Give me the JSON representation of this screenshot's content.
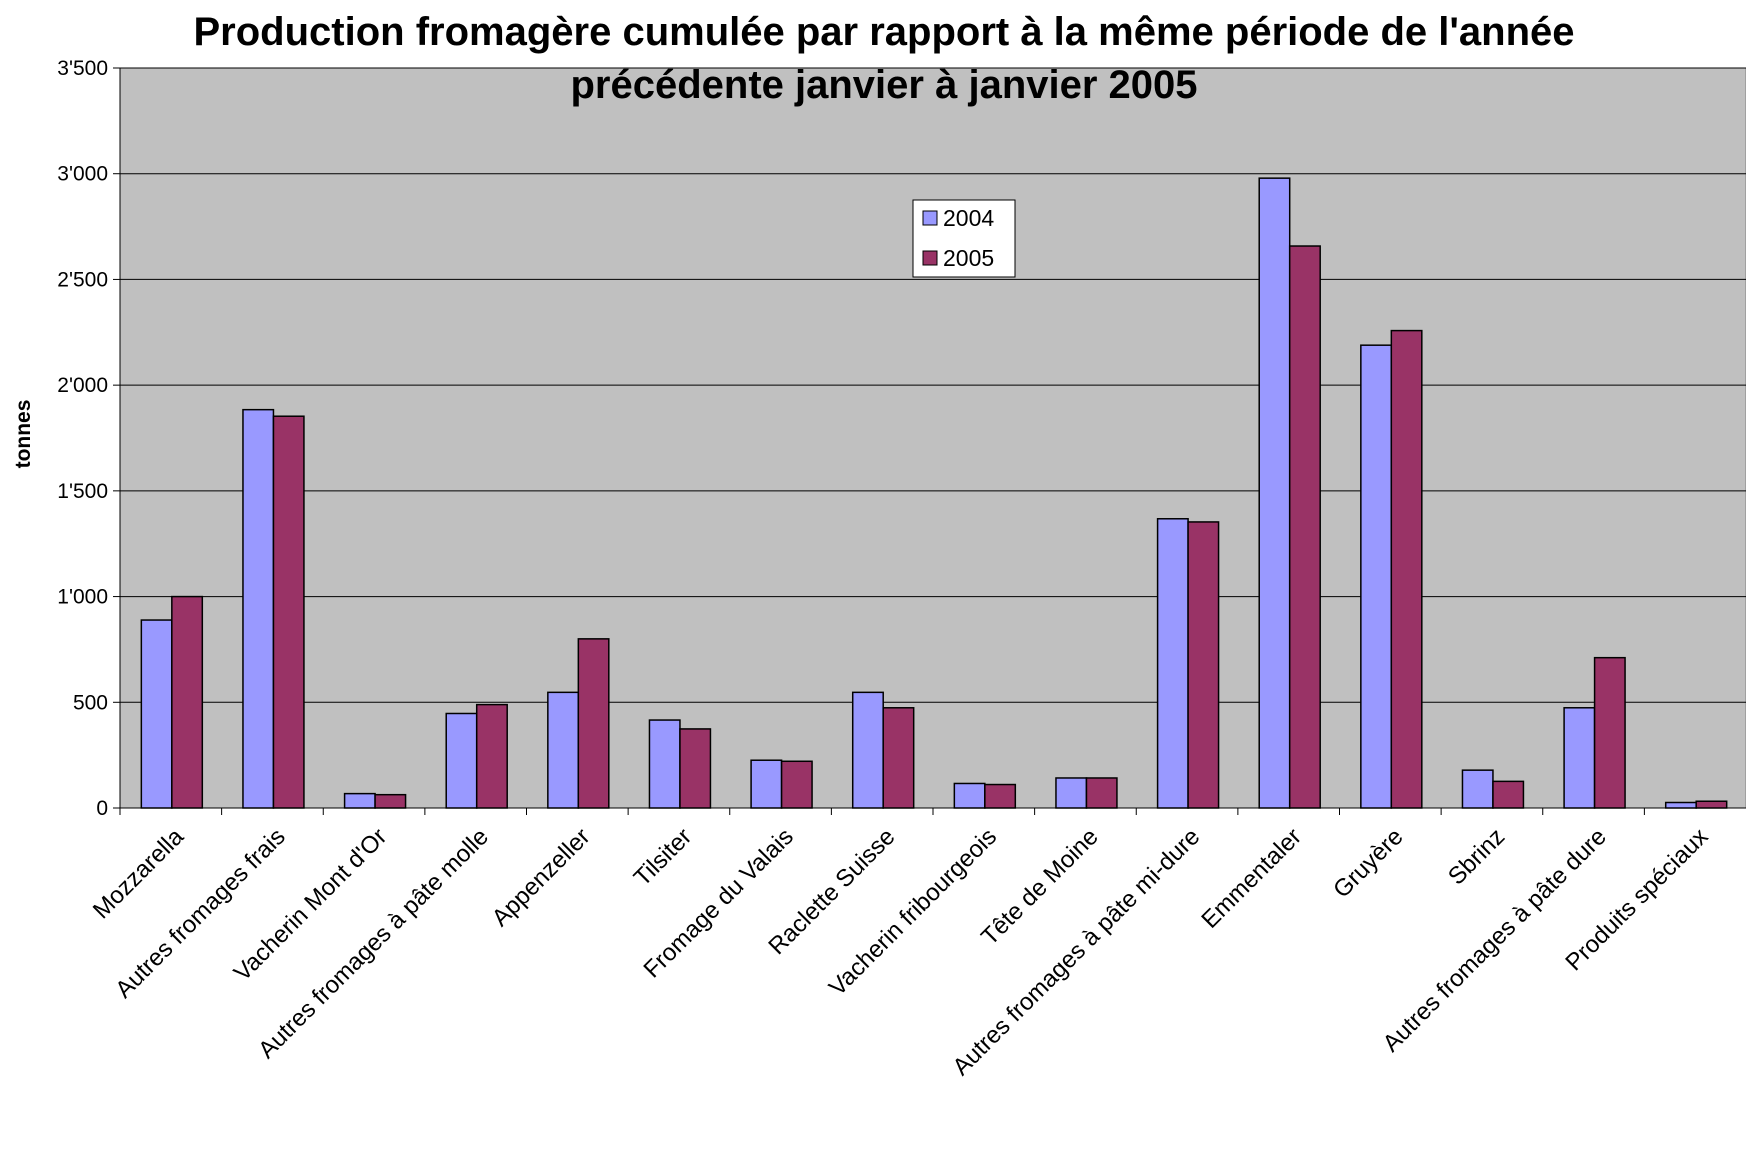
{
  "chart_data": {
    "type": "bar",
    "title": "Production fromagère cumulée par rapport à la même période de l'année précédente janvier à janvier 2005",
    "ylabel": "tonnes",
    "categories": [
      "Mozzarella",
      "Autres fromages frais",
      "Vacherin Mont d'Or",
      "Autres fromages à pâte molle",
      "Appenzeller",
      "Tilsiter",
      "Fromage du Valais",
      "Raclette Suisse",
      "Vacherin fribourgeois",
      "Tête de Moine",
      "Autres fromages à pâte mi-dure",
      "Emmentaler",
      "Gruyère",
      "Sbrinz",
      "Autres fromages à pâte dure",
      "Produits spéciaux"
    ],
    "series": [
      {
        "name": "2004",
        "color": "#9999ff",
        "values": [
          889,
          1884,
          68,
          447,
          547,
          416,
          226,
          547,
          116,
          142,
          1368,
          2979,
          2189,
          179,
          474,
          26
        ]
      },
      {
        "name": "2005",
        "color": "#993366",
        "values": [
          1000,
          1853,
          63,
          489,
          800,
          374,
          221,
          474,
          111,
          142,
          1353,
          2658,
          2258,
          126,
          711,
          32
        ]
      }
    ],
    "ylim": [
      0,
      3500
    ],
    "yticks": [
      0,
      500,
      {
        "value": 1000,
        "label": "1'000"
      },
      {
        "value": 1500,
        "label": "1'500"
      },
      {
        "value": 2000,
        "label": "2'000"
      },
      {
        "value": 2500,
        "label": "2'500"
      },
      {
        "value": 3000,
        "label": "3'000"
      },
      {
        "value": 3500,
        "label": "3'500"
      }
    ],
    "grid": true,
    "legend": "top-center"
  }
}
